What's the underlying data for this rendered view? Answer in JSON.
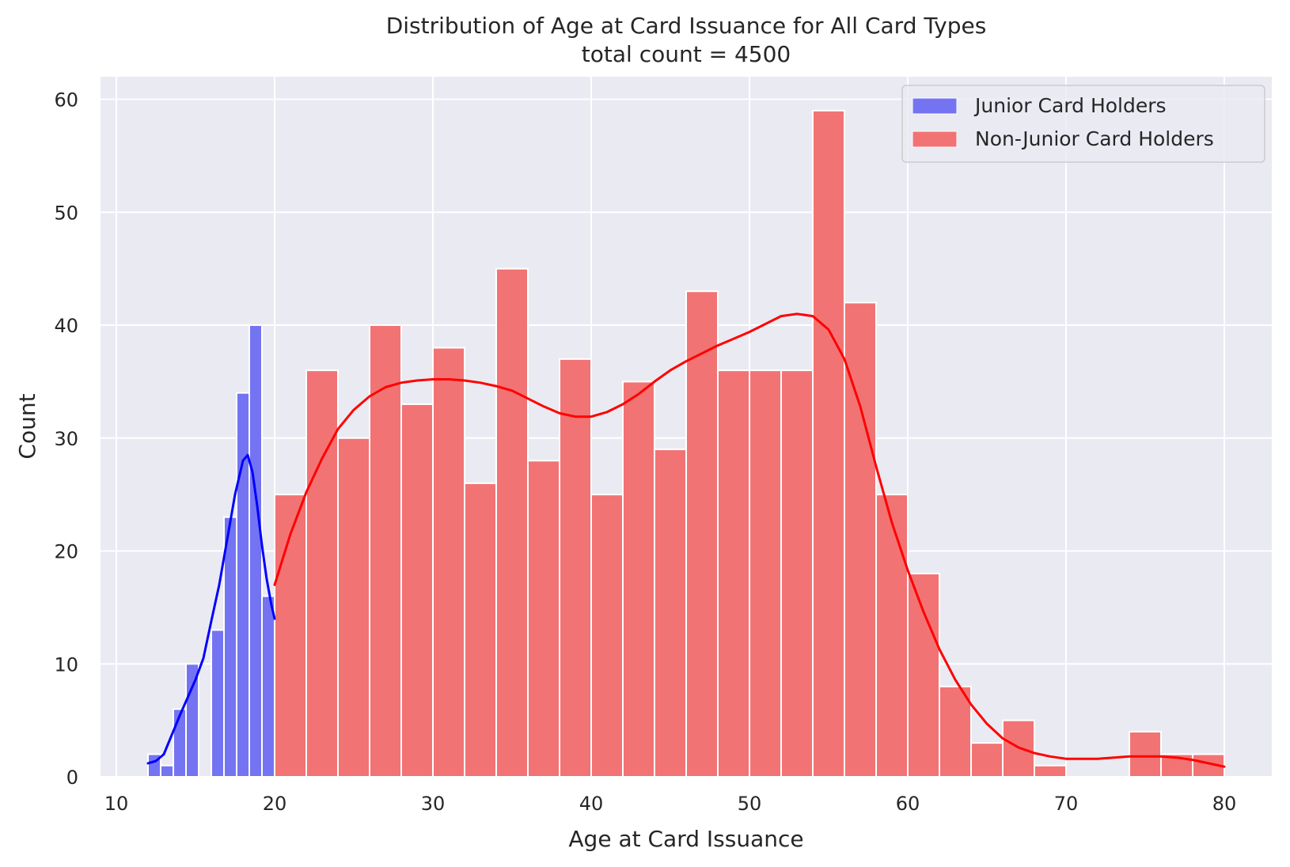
{
  "chart_data": {
    "type": "bar",
    "title": "Distribution of Age at Card Issuance for All Card Types",
    "subtitle": "total count = 4500",
    "xlabel": "Age at Card Issuance",
    "ylabel": "Count",
    "xlim": [
      9,
      83
    ],
    "ylim": [
      0,
      62
    ],
    "xticks": [
      "10",
      "20",
      "30",
      "40",
      "50",
      "60",
      "70",
      "80"
    ],
    "xtick_values": [
      10,
      20,
      30,
      40,
      50,
      60,
      70,
      80
    ],
    "yticks": [
      "0",
      "10",
      "20",
      "30",
      "40",
      "50",
      "60"
    ],
    "ytick_values": [
      0,
      10,
      20,
      30,
      40,
      50,
      60
    ],
    "grid": true,
    "legend_position": "top-right",
    "series": [
      {
        "name": "Junior Card Holders",
        "color": "#7474f2",
        "kde_color": "#0000ff",
        "bins": [
          {
            "x0": 12.0,
            "x1": 12.8,
            "count": 2
          },
          {
            "x0": 12.8,
            "x1": 13.6,
            "count": 1
          },
          {
            "x0": 13.6,
            "x1": 14.4,
            "count": 6
          },
          {
            "x0": 14.4,
            "x1": 15.2,
            "count": 10
          },
          {
            "x0": 15.2,
            "x1": 16.0,
            "count": 0
          },
          {
            "x0": 16.0,
            "x1": 16.8,
            "count": 13
          },
          {
            "x0": 16.8,
            "x1": 17.6,
            "count": 23
          },
          {
            "x0": 17.6,
            "x1": 18.4,
            "count": 34
          },
          {
            "x0": 18.4,
            "x1": 19.2,
            "count": 40
          },
          {
            "x0": 19.2,
            "x1": 20.0,
            "count": 16
          }
        ],
        "kde": {
          "x": [
            12.0,
            12.5,
            13.0,
            13.5,
            14.0,
            14.5,
            15.0,
            15.5,
            16.0,
            16.5,
            17.0,
            17.5,
            18.0,
            18.3,
            18.6,
            18.9,
            19.2,
            19.5,
            19.8,
            20.0
          ],
          "y": [
            1.2,
            1.4,
            2.0,
            3.7,
            5.4,
            7.0,
            8.6,
            10.5,
            13.8,
            17.0,
            21.0,
            25.0,
            28.0,
            28.5,
            27.0,
            24.0,
            20.5,
            17.5,
            15.2,
            14.0
          ]
        }
      },
      {
        "name": "Non-Junior Card Holders",
        "color": "#f27374",
        "kde_color": "#ff0000",
        "bins": [
          {
            "x0": 20,
            "x1": 22,
            "count": 25
          },
          {
            "x0": 22,
            "x1": 24,
            "count": 36
          },
          {
            "x0": 24,
            "x1": 26,
            "count": 30
          },
          {
            "x0": 26,
            "x1": 28,
            "count": 40
          },
          {
            "x0": 28,
            "x1": 30,
            "count": 33
          },
          {
            "x0": 30,
            "x1": 32,
            "count": 38
          },
          {
            "x0": 32,
            "x1": 34,
            "count": 26
          },
          {
            "x0": 34,
            "x1": 36,
            "count": 45
          },
          {
            "x0": 36,
            "x1": 38,
            "count": 28
          },
          {
            "x0": 38,
            "x1": 40,
            "count": 37
          },
          {
            "x0": 40,
            "x1": 42,
            "count": 25
          },
          {
            "x0": 42,
            "x1": 44,
            "count": 35
          },
          {
            "x0": 44,
            "x1": 46,
            "count": 29
          },
          {
            "x0": 46,
            "x1": 48,
            "count": 43
          },
          {
            "x0": 48,
            "x1": 50,
            "count": 36
          },
          {
            "x0": 50,
            "x1": 52,
            "count": 36
          },
          {
            "x0": 52,
            "x1": 54,
            "count": 36
          },
          {
            "x0": 54,
            "x1": 56,
            "count": 59
          },
          {
            "x0": 56,
            "x1": 58,
            "count": 42
          },
          {
            "x0": 58,
            "x1": 60,
            "count": 25
          },
          {
            "x0": 60,
            "x1": 62,
            "count": 18
          },
          {
            "x0": 62,
            "x1": 64,
            "count": 8
          },
          {
            "x0": 64,
            "x1": 66,
            "count": 3
          },
          {
            "x0": 66,
            "x1": 68,
            "count": 5
          },
          {
            "x0": 68,
            "x1": 70,
            "count": 1
          },
          {
            "x0": 70,
            "x1": 72,
            "count": 0
          },
          {
            "x0": 72,
            "x1": 74,
            "count": 0
          },
          {
            "x0": 74,
            "x1": 76,
            "count": 4
          },
          {
            "x0": 76,
            "x1": 78,
            "count": 2
          },
          {
            "x0": 78,
            "x1": 80,
            "count": 2
          }
        ],
        "kde": {
          "x": [
            20,
            21,
            22,
            23,
            24,
            25,
            26,
            27,
            28,
            29,
            30,
            31,
            32,
            33,
            34,
            35,
            36,
            37,
            38,
            39,
            40,
            41,
            42,
            43,
            44,
            45,
            46,
            47,
            48,
            49,
            50,
            51,
            52,
            53,
            54,
            55,
            56,
            57,
            58,
            59,
            60,
            61,
            62,
            63,
            64,
            65,
            66,
            67,
            68,
            69,
            70,
            71,
            72,
            73,
            74,
            75,
            76,
            77,
            78,
            79,
            80
          ],
          "y": [
            17.0,
            21.5,
            25.2,
            28.2,
            30.8,
            32.5,
            33.7,
            34.5,
            34.9,
            35.1,
            35.2,
            35.2,
            35.1,
            34.9,
            34.6,
            34.2,
            33.5,
            32.8,
            32.2,
            31.9,
            31.9,
            32.3,
            33.0,
            33.9,
            35.0,
            36.0,
            36.8,
            37.5,
            38.2,
            38.8,
            39.4,
            40.1,
            40.8,
            41.0,
            40.8,
            39.6,
            37.0,
            32.8,
            27.5,
            22.5,
            18.3,
            14.6,
            11.3,
            8.6,
            6.4,
            4.7,
            3.4,
            2.6,
            2.1,
            1.8,
            1.6,
            1.6,
            1.6,
            1.7,
            1.8,
            1.8,
            1.8,
            1.7,
            1.5,
            1.2,
            0.9
          ]
        }
      }
    ]
  }
}
